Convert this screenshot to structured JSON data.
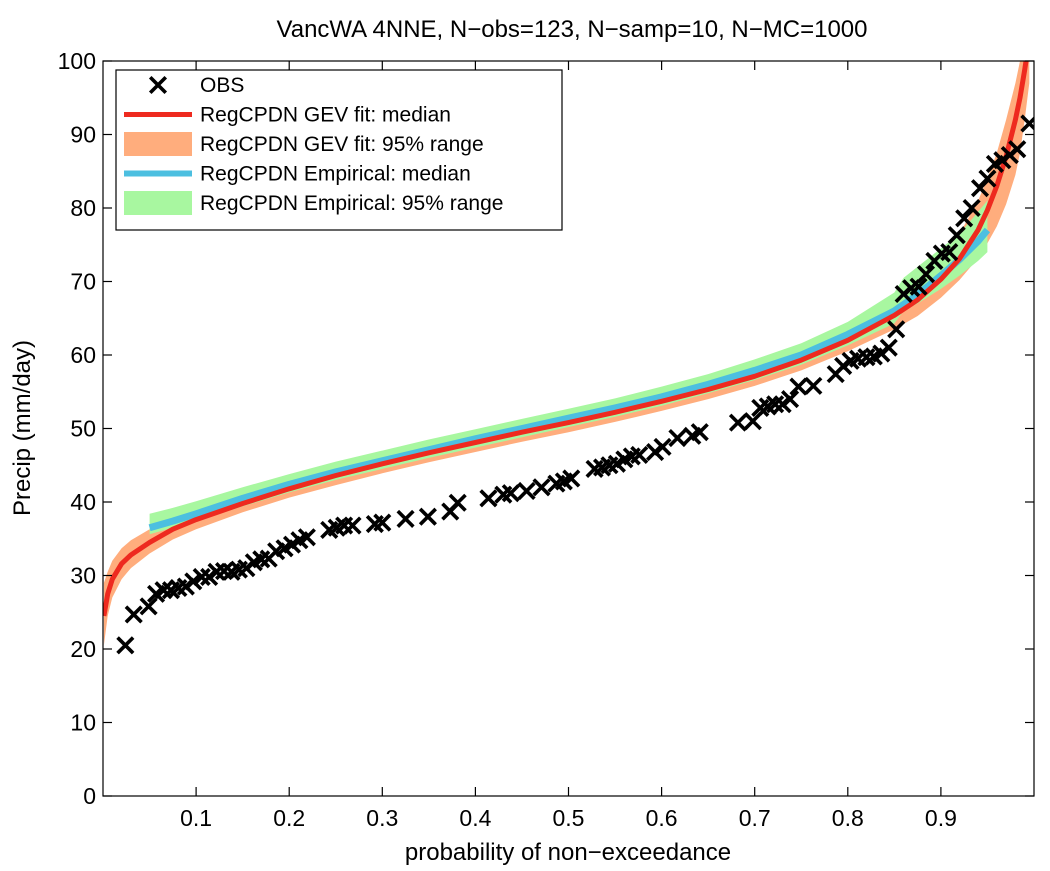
{
  "chart_data": {
    "type": "line",
    "title": "VancWA 4NNE, N−obs=123, N−samp=10, N−MC=1000",
    "xlabel": "probability of non−exceedance",
    "ylabel": "Precip (mm/day)",
    "xlim": [
      0.0,
      1.0
    ],
    "ylim": [
      0,
      100
    ],
    "xticks": [
      0.1,
      0.2,
      0.3,
      0.4,
      0.5,
      0.6,
      0.7,
      0.8,
      0.9
    ],
    "xtick_labels": [
      "0.1",
      "0.2",
      "0.3",
      "0.4",
      "0.5",
      "0.6",
      "0.7",
      "0.8",
      "0.9"
    ],
    "yticks": [
      0,
      10,
      20,
      30,
      40,
      50,
      60,
      70,
      80,
      90,
      100
    ],
    "ytick_labels": [
      "0",
      "10",
      "20",
      "30",
      "40",
      "50",
      "60",
      "70",
      "80",
      "90",
      "100"
    ],
    "grid": false,
    "legend_position": "top-left",
    "colors": {
      "obs": "#000000",
      "gev_median": "#ee2a1f",
      "gev_range": "#ffad7d",
      "emp_median": "#4cbfe0",
      "emp_range": "#a8f7a0"
    },
    "series": [
      {
        "name": "OBS",
        "kind": "scatter",
        "x": [
          0.024,
          0.033,
          0.049,
          0.057,
          0.065,
          0.073,
          0.081,
          0.089,
          0.097,
          0.106,
          0.114,
          0.122,
          0.13,
          0.138,
          0.146,
          0.154,
          0.162,
          0.17,
          0.178,
          0.186,
          0.195,
          0.203,
          0.211,
          0.219,
          0.243,
          0.251,
          0.259,
          0.268,
          0.292,
          0.3,
          0.325,
          0.349,
          0.373,
          0.381,
          0.414,
          0.43,
          0.438,
          0.455,
          0.471,
          0.487,
          0.495,
          0.503,
          0.528,
          0.536,
          0.544,
          0.552,
          0.56,
          0.568,
          0.576,
          0.593,
          0.601,
          0.617,
          0.633,
          0.641,
          0.682,
          0.698,
          0.706,
          0.714,
          0.722,
          0.73,
          0.738,
          0.747,
          0.763,
          0.787,
          0.795,
          0.803,
          0.811,
          0.82,
          0.828,
          0.836,
          0.844,
          0.852,
          0.86,
          0.868,
          0.876,
          0.884,
          0.893,
          0.901,
          0.909,
          0.917,
          0.925,
          0.933,
          0.942,
          0.95,
          0.958,
          0.966,
          0.974,
          0.982,
          0.995
        ],
        "y": [
          20.5,
          24.7,
          25.8,
          27.5,
          28.0,
          28.0,
          28.3,
          28.5,
          29.2,
          29.8,
          29.8,
          30.5,
          30.6,
          30.5,
          30.8,
          31.0,
          31.8,
          32.2,
          32.3,
          33.3,
          33.7,
          34.2,
          34.8,
          35.2,
          36.2,
          36.5,
          36.8,
          36.8,
          37.0,
          37.2,
          37.7,
          38.0,
          38.7,
          39.9,
          40.5,
          41.0,
          41.2,
          41.5,
          42.0,
          42.5,
          42.8,
          43.2,
          44.5,
          44.7,
          45.0,
          45.2,
          45.8,
          46.2,
          46.4,
          46.8,
          47.5,
          48.7,
          49.0,
          49.5,
          50.8,
          51.0,
          52.8,
          53.0,
          53.3,
          53.3,
          54.0,
          55.7,
          55.8,
          57.4,
          58.5,
          59.2,
          59.5,
          59.7,
          59.8,
          60.2,
          61.0,
          63.5,
          68.3,
          69.1,
          69.3,
          71.0,
          72.8,
          73.8,
          74.0,
          76.3,
          78.6,
          80.0,
          82.7,
          84.0,
          86.0,
          86.5,
          87.2,
          88.0,
          91.5
        ]
      },
      {
        "name": "RegCPDN GEV fit: median",
        "kind": "line",
        "x": [
          0.001,
          0.005,
          0.01,
          0.02,
          0.03,
          0.05,
          0.075,
          0.1,
          0.15,
          0.2,
          0.25,
          0.3,
          0.35,
          0.4,
          0.45,
          0.5,
          0.55,
          0.6,
          0.65,
          0.7,
          0.75,
          0.8,
          0.85,
          0.875,
          0.9,
          0.92,
          0.94,
          0.95,
          0.96,
          0.97,
          0.98,
          0.985,
          0.99,
          0.995
        ],
        "y": [
          24.5,
          27.5,
          29.5,
          31.6,
          32.8,
          34.5,
          36.3,
          37.6,
          39.8,
          41.8,
          43.6,
          45.2,
          46.7,
          48.1,
          49.5,
          50.8,
          52.2,
          53.7,
          55.3,
          57.1,
          59.3,
          62.0,
          65.4,
          67.5,
          70.3,
          73.1,
          77.0,
          79.7,
          83.0,
          87.0,
          92.0,
          95.0,
          98.8,
          103.0
        ]
      },
      {
        "name": "RegCPDN GEV fit: 95% range",
        "kind": "band",
        "x": [
          0.001,
          0.005,
          0.01,
          0.02,
          0.03,
          0.05,
          0.075,
          0.1,
          0.15,
          0.2,
          0.25,
          0.3,
          0.35,
          0.4,
          0.45,
          0.5,
          0.55,
          0.6,
          0.65,
          0.7,
          0.75,
          0.8,
          0.85,
          0.875,
          0.9,
          0.92,
          0.94,
          0.95,
          0.96,
          0.97,
          0.98,
          0.985,
          0.99,
          0.995
        ],
        "lower": [
          20.5,
          24.5,
          27.0,
          29.5,
          31.0,
          33.0,
          34.9,
          36.3,
          38.6,
          40.6,
          42.3,
          43.9,
          45.4,
          46.8,
          48.2,
          49.5,
          50.9,
          52.4,
          54.0,
          55.8,
          57.9,
          60.5,
          63.5,
          65.3,
          67.8,
          70.2,
          73.2,
          75.2,
          77.5,
          80.5,
          84.5,
          87.5,
          92.0,
          97.0
        ],
        "upper": [
          29.0,
          30.5,
          32.0,
          33.7,
          34.8,
          36.3,
          37.8,
          39.0,
          41.1,
          43.0,
          44.8,
          46.4,
          47.9,
          49.4,
          50.8,
          52.1,
          53.5,
          55.0,
          56.6,
          58.4,
          60.7,
          63.5,
          67.3,
          70.0,
          73.5,
          76.5,
          81.0,
          84.0,
          87.5,
          92.0,
          97.0,
          100.0,
          103.0,
          105.0
        ]
      },
      {
        "name": "RegCPDN Empirical: median",
        "kind": "line",
        "x": [
          0.05,
          0.075,
          0.1,
          0.15,
          0.2,
          0.25,
          0.3,
          0.35,
          0.4,
          0.45,
          0.5,
          0.55,
          0.6,
          0.65,
          0.7,
          0.75,
          0.8,
          0.85,
          0.875,
          0.9,
          0.92,
          0.94,
          0.95
        ],
        "y": [
          36.5,
          37.4,
          38.4,
          40.5,
          42.4,
          44.1,
          45.6,
          47.1,
          48.6,
          50.0,
          51.4,
          52.8,
          54.3,
          56.0,
          57.9,
          60.0,
          62.8,
          66.0,
          68.2,
          70.8,
          73.0,
          75.5,
          77.0
        ]
      },
      {
        "name": "RegCPDN Empirical: 95% range",
        "kind": "band",
        "x": [
          0.05,
          0.075,
          0.1,
          0.15,
          0.2,
          0.25,
          0.3,
          0.35,
          0.4,
          0.45,
          0.5,
          0.55,
          0.6,
          0.65,
          0.7,
          0.75,
          0.8,
          0.85,
          0.86,
          0.875,
          0.9,
          0.92,
          0.94,
          0.95
        ],
        "lower": [
          35.6,
          36.5,
          37.4,
          39.4,
          41.3,
          43.0,
          44.5,
          46.0,
          47.4,
          48.8,
          50.2,
          51.6,
          53.1,
          54.8,
          56.6,
          58.7,
          61.3,
          64.3,
          66.0,
          67.0,
          69.0,
          70.8,
          72.8,
          74.0
        ],
        "upper": [
          38.4,
          39.2,
          40.1,
          42.0,
          43.8,
          45.5,
          47.0,
          48.5,
          49.9,
          51.3,
          52.7,
          54.1,
          55.7,
          57.4,
          59.4,
          61.6,
          64.5,
          68.5,
          70.5,
          72.0,
          74.5,
          76.5,
          79.5,
          81.0
        ]
      }
    ]
  }
}
